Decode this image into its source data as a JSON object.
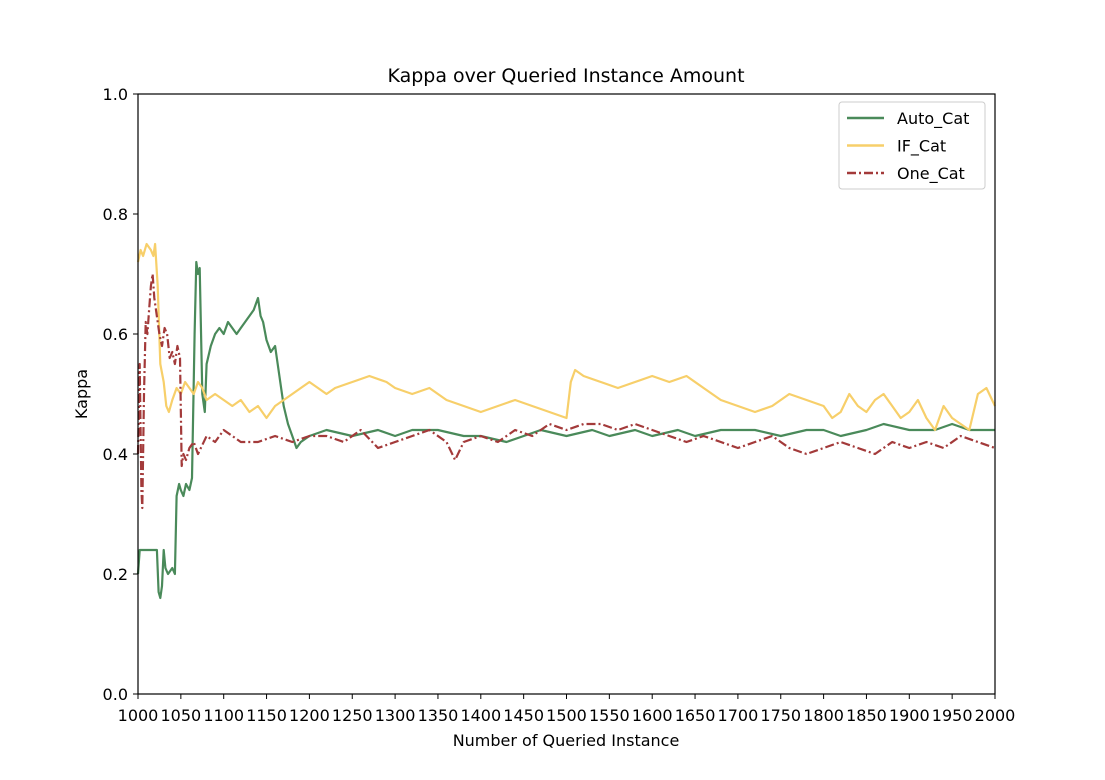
{
  "chart_data": {
    "type": "line",
    "title": "Kappa over Queried Instance Amount",
    "xlabel": "Number of Queried Instance",
    "ylabel": "Kappa",
    "xlim": [
      1000,
      2000
    ],
    "ylim": [
      0.0,
      1.0
    ],
    "xticks": [
      "1000",
      "1050",
      "1100",
      "1150",
      "1200",
      "1250",
      "1300",
      "1350",
      "1400",
      "1450",
      "1500",
      "1550",
      "1600",
      "1650",
      "1700",
      "1750",
      "1800",
      "1850",
      "1900",
      "1950",
      "2000"
    ],
    "yticks": [
      "0.0",
      "0.2",
      "0.4",
      "0.6",
      "0.8",
      "1.0"
    ],
    "grid": false,
    "legend_position": "top-right",
    "series": [
      {
        "name": "Auto_Cat",
        "color": "#4a8a5a",
        "style": "solid",
        "x": [
          1000,
          1002,
          1005,
          1010,
          1015,
          1020,
          1022,
          1024,
          1026,
          1028,
          1030,
          1032,
          1035,
          1040,
          1043,
          1045,
          1048,
          1050,
          1053,
          1056,
          1060,
          1063,
          1066,
          1068,
          1070,
          1072,
          1075,
          1078,
          1080,
          1085,
          1090,
          1095,
          1100,
          1105,
          1110,
          1115,
          1120,
          1125,
          1130,
          1135,
          1140,
          1143,
          1146,
          1150,
          1155,
          1160,
          1165,
          1170,
          1175,
          1180,
          1185,
          1190,
          1200,
          1220,
          1250,
          1280,
          1300,
          1320,
          1350,
          1380,
          1400,
          1430,
          1450,
          1470,
          1500,
          1530,
          1550,
          1580,
          1600,
          1630,
          1650,
          1680,
          1700,
          1720,
          1750,
          1780,
          1800,
          1820,
          1850,
          1870,
          1900,
          1930,
          1950,
          1970,
          2000
        ],
        "y": [
          0.2,
          0.24,
          0.24,
          0.24,
          0.24,
          0.24,
          0.24,
          0.17,
          0.16,
          0.18,
          0.24,
          0.21,
          0.2,
          0.21,
          0.2,
          0.33,
          0.35,
          0.34,
          0.33,
          0.35,
          0.34,
          0.36,
          0.6,
          0.72,
          0.7,
          0.71,
          0.5,
          0.47,
          0.55,
          0.58,
          0.6,
          0.61,
          0.6,
          0.62,
          0.61,
          0.6,
          0.61,
          0.62,
          0.63,
          0.64,
          0.66,
          0.63,
          0.62,
          0.59,
          0.57,
          0.58,
          0.53,
          0.48,
          0.45,
          0.43,
          0.41,
          0.42,
          0.43,
          0.44,
          0.43,
          0.44,
          0.43,
          0.44,
          0.44,
          0.43,
          0.43,
          0.42,
          0.43,
          0.44,
          0.43,
          0.44,
          0.43,
          0.44,
          0.43,
          0.44,
          0.43,
          0.44,
          0.44,
          0.44,
          0.43,
          0.44,
          0.44,
          0.43,
          0.44,
          0.45,
          0.44,
          0.44,
          0.45,
          0.44,
          0.44
        ]
      },
      {
        "name": "IF_Cat",
        "color": "#f7cf6a",
        "style": "solid",
        "x": [
          1000,
          1003,
          1006,
          1010,
          1015,
          1018,
          1020,
          1023,
          1026,
          1030,
          1033,
          1036,
          1040,
          1045,
          1050,
          1055,
          1060,
          1065,
          1070,
          1075,
          1080,
          1090,
          1100,
          1110,
          1120,
          1130,
          1140,
          1150,
          1160,
          1170,
          1180,
          1190,
          1200,
          1210,
          1220,
          1230,
          1250,
          1270,
          1290,
          1300,
          1320,
          1340,
          1360,
          1380,
          1400,
          1420,
          1440,
          1460,
          1480,
          1500,
          1505,
          1510,
          1520,
          1540,
          1560,
          1580,
          1600,
          1620,
          1640,
          1660,
          1680,
          1700,
          1720,
          1740,
          1760,
          1780,
          1800,
          1810,
          1820,
          1830,
          1840,
          1850,
          1860,
          1870,
          1880,
          1890,
          1900,
          1910,
          1920,
          1930,
          1940,
          1950,
          1960,
          1970,
          1980,
          1990,
          2000
        ],
        "y": [
          0.72,
          0.74,
          0.73,
          0.75,
          0.74,
          0.73,
          0.75,
          0.68,
          0.55,
          0.52,
          0.48,
          0.47,
          0.49,
          0.51,
          0.5,
          0.52,
          0.51,
          0.5,
          0.52,
          0.51,
          0.49,
          0.5,
          0.49,
          0.48,
          0.49,
          0.47,
          0.48,
          0.46,
          0.48,
          0.49,
          0.5,
          0.51,
          0.52,
          0.51,
          0.5,
          0.51,
          0.52,
          0.53,
          0.52,
          0.51,
          0.5,
          0.51,
          0.49,
          0.48,
          0.47,
          0.48,
          0.49,
          0.48,
          0.47,
          0.46,
          0.52,
          0.54,
          0.53,
          0.52,
          0.51,
          0.52,
          0.53,
          0.52,
          0.53,
          0.51,
          0.49,
          0.48,
          0.47,
          0.48,
          0.5,
          0.49,
          0.48,
          0.46,
          0.47,
          0.5,
          0.48,
          0.47,
          0.49,
          0.5,
          0.48,
          0.46,
          0.47,
          0.49,
          0.46,
          0.44,
          0.48,
          0.46,
          0.45,
          0.44,
          0.5,
          0.51,
          0.48
        ]
      },
      {
        "name": "One_Cat",
        "color": "#a33a3a",
        "style": "dashdot",
        "x": [
          1000,
          1002,
          1004,
          1005,
          1007,
          1009,
          1011,
          1013,
          1015,
          1017,
          1019,
          1021,
          1023,
          1025,
          1028,
          1031,
          1034,
          1037,
          1040,
          1043,
          1046,
          1049,
          1051,
          1053,
          1056,
          1060,
          1065,
          1070,
          1080,
          1090,
          1100,
          1110,
          1120,
          1140,
          1160,
          1180,
          1200,
          1220,
          1240,
          1260,
          1280,
          1300,
          1320,
          1340,
          1360,
          1370,
          1380,
          1400,
          1420,
          1440,
          1460,
          1480,
          1500,
          1520,
          1540,
          1560,
          1580,
          1600,
          1620,
          1640,
          1660,
          1680,
          1700,
          1720,
          1740,
          1760,
          1780,
          1800,
          1820,
          1840,
          1860,
          1880,
          1900,
          1920,
          1940,
          1960,
          1980,
          2000
        ],
        "y": [
          0.4,
          0.55,
          0.34,
          0.31,
          0.5,
          0.62,
          0.6,
          0.64,
          0.68,
          0.7,
          0.66,
          0.64,
          0.62,
          0.6,
          0.58,
          0.61,
          0.6,
          0.56,
          0.57,
          0.55,
          0.58,
          0.56,
          0.38,
          0.4,
          0.39,
          0.41,
          0.42,
          0.4,
          0.43,
          0.42,
          0.44,
          0.43,
          0.42,
          0.42,
          0.43,
          0.42,
          0.43,
          0.43,
          0.42,
          0.44,
          0.41,
          0.42,
          0.43,
          0.44,
          0.42,
          0.39,
          0.42,
          0.43,
          0.42,
          0.44,
          0.43,
          0.45,
          0.44,
          0.45,
          0.45,
          0.44,
          0.45,
          0.44,
          0.43,
          0.42,
          0.43,
          0.42,
          0.41,
          0.42,
          0.43,
          0.41,
          0.4,
          0.41,
          0.42,
          0.41,
          0.4,
          0.42,
          0.41,
          0.42,
          0.41,
          0.43,
          0.42,
          0.41
        ]
      }
    ]
  }
}
